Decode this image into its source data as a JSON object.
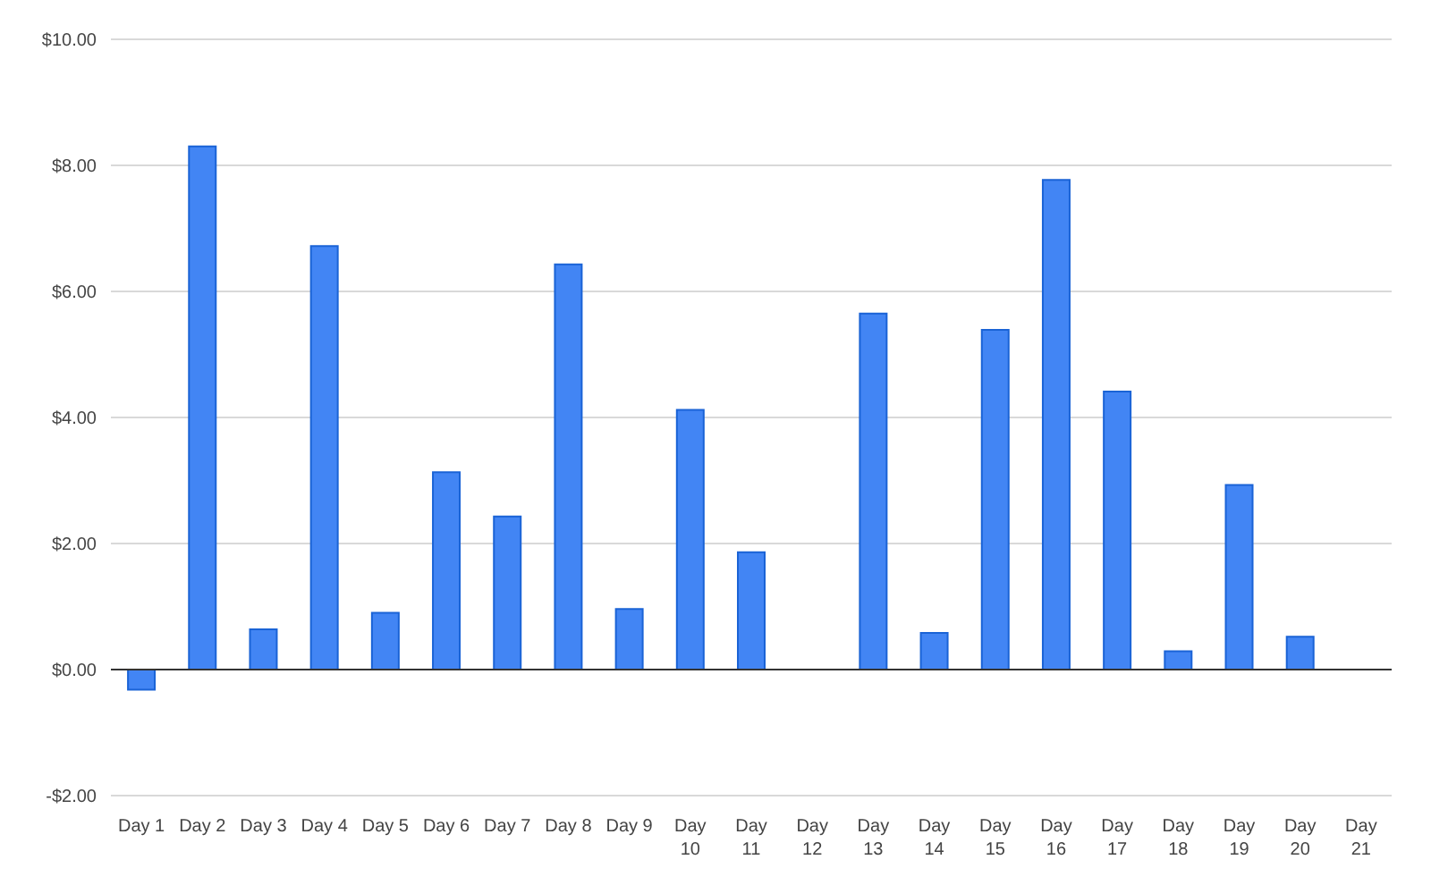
{
  "chart_data": {
    "type": "bar",
    "categories": [
      "Day 1",
      "Day 2",
      "Day 3",
      "Day 4",
      "Day 5",
      "Day 6",
      "Day 7",
      "Day 8",
      "Day 9",
      "Day 10",
      "Day 11",
      "Day 12",
      "Day 13",
      "Day 14",
      "Day 15",
      "Day 16",
      "Day 17",
      "Day 18",
      "Day 19",
      "Day 20",
      "Day 21"
    ],
    "series": [
      {
        "color": "#4285f4",
        "values": [
          -0.32,
          8.3,
          0.64,
          6.72,
          0.9,
          3.13,
          2.43,
          6.43,
          0.96,
          4.12,
          1.86,
          0,
          5.65,
          0.58,
          5.39,
          7.77,
          4.41,
          0.29,
          2.93,
          0.52,
          0
        ]
      }
    ],
    "ylim": [
      -2,
      10
    ],
    "yticks": [
      {
        "value": -2,
        "label": "-$2.00"
      },
      {
        "value": 0,
        "label": "$0.00"
      },
      {
        "value": 2,
        "label": "$2.00"
      },
      {
        "value": 4,
        "label": "$4.00"
      },
      {
        "value": 6,
        "label": "$6.00"
      },
      {
        "value": 8,
        "label": "$8.00"
      },
      {
        "value": 10,
        "label": "$10.00"
      }
    ],
    "grid": "y"
  }
}
